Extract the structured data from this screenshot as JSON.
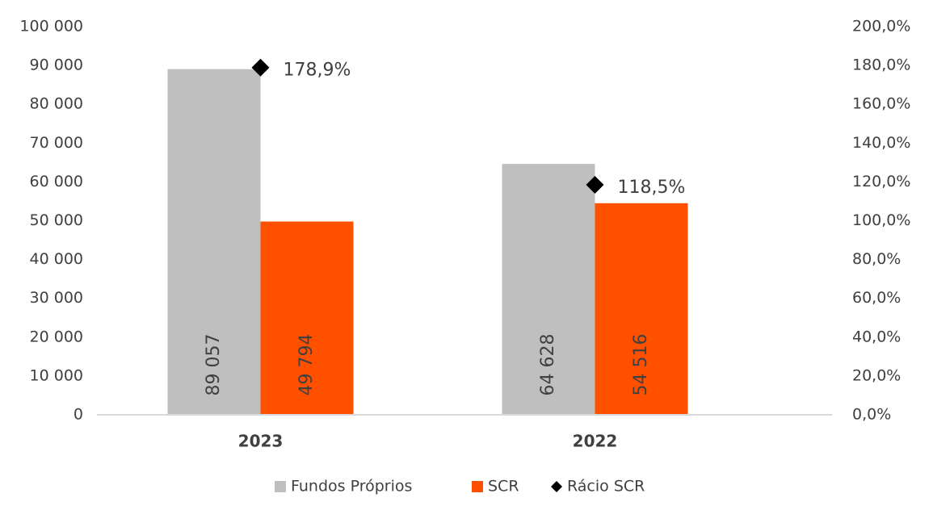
{
  "chart_data": {
    "type": "bar",
    "categories": [
      "2023",
      "2022"
    ],
    "series": [
      {
        "name": "Fundos Próprios",
        "color": "#bfbfbf",
        "values": [
          89057,
          64628
        ],
        "value_labels": [
          "89 057",
          "64 628"
        ]
      },
      {
        "name": "SCR",
        "color": "#ff5000",
        "values": [
          49794,
          54516
        ],
        "value_labels": [
          "49 794",
          "54 516"
        ]
      },
      {
        "name": "Rácio SCR",
        "color": "#000000",
        "type": "scatter",
        "axis": "y2",
        "values": [
          178.9,
          118.5
        ],
        "value_labels": [
          "178,9%",
          "118,5%"
        ]
      }
    ],
    "ylim": [
      0,
      100000
    ],
    "yticks": [
      {
        "value": 0,
        "label": "0"
      },
      {
        "value": 10000,
        "label": "10 000"
      },
      {
        "value": 20000,
        "label": "20 000"
      },
      {
        "value": 30000,
        "label": "30 000"
      },
      {
        "value": 40000,
        "label": "40 000"
      },
      {
        "value": 50000,
        "label": "50 000"
      },
      {
        "value": 60000,
        "label": "60 000"
      },
      {
        "value": 70000,
        "label": "70 000"
      },
      {
        "value": 80000,
        "label": "80 000"
      },
      {
        "value": 90000,
        "label": "90 000"
      },
      {
        "value": 100000,
        "label": "100 000"
      }
    ],
    "y2lim": [
      0,
      200
    ],
    "y2ticks": [
      {
        "value": 0,
        "label": "0,0%"
      },
      {
        "value": 20,
        "label": "20,0%"
      },
      {
        "value": 40,
        "label": "40,0%"
      },
      {
        "value": 60,
        "label": "60,0%"
      },
      {
        "value": 80,
        "label": "80,0%"
      },
      {
        "value": 100,
        "label": "100,0%"
      },
      {
        "value": 120,
        "label": "120,0%"
      },
      {
        "value": 140,
        "label": "140,0%"
      },
      {
        "value": 160,
        "label": "160,0%"
      },
      {
        "value": 180,
        "label": "180,0%"
      },
      {
        "value": 200,
        "label": "200,0%"
      }
    ],
    "legend": "bottom",
    "grid": false
  }
}
